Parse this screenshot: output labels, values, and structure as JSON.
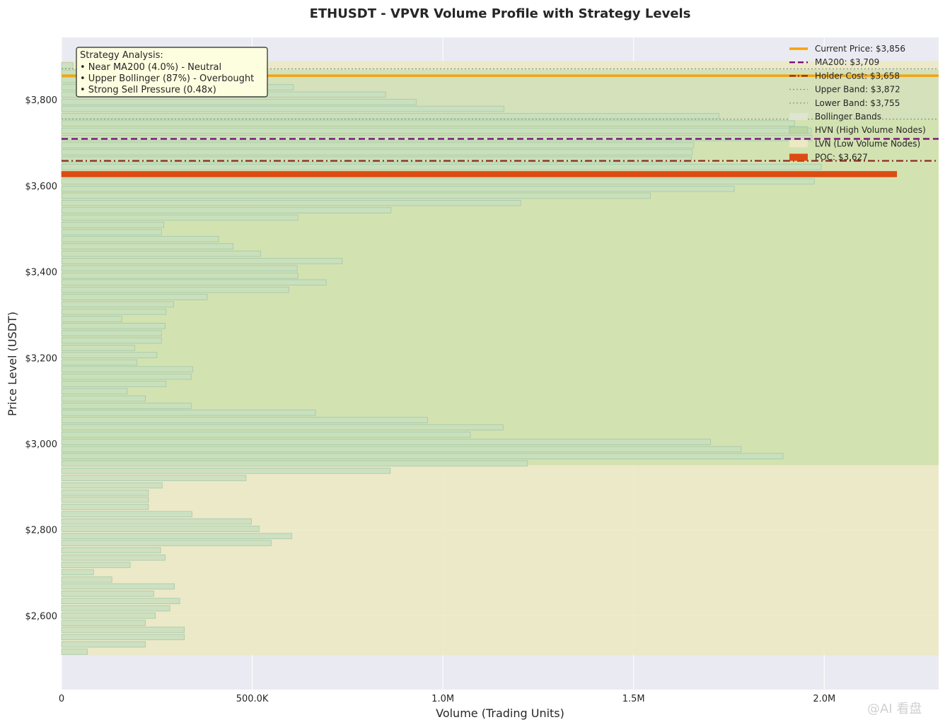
{
  "chart_data": {
    "type": "bar",
    "orientation": "horizontal",
    "title": "ETHUSDT - VPVR Volume Profile with Strategy Levels",
    "xlabel": "Volume (Trading Units)",
    "ylabel": "Price Level (USDT)",
    "xlim": [
      0,
      2300000
    ],
    "ylim": [
      2428,
      3945
    ],
    "x_ticks": [
      {
        "value": 0,
        "label": "0"
      },
      {
        "value": 500000,
        "label": "500.0K"
      },
      {
        "value": 1000000,
        "label": "1.0M"
      },
      {
        "value": 1500000,
        "label": "1.5M"
      },
      {
        "value": 2000000,
        "label": "2.0M"
      }
    ],
    "y_ticks": [
      {
        "value": 2600,
        "label": "$2,600"
      },
      {
        "value": 2800,
        "label": "$2,800"
      },
      {
        "value": 3000,
        "label": "$3,000"
      },
      {
        "value": 3200,
        "label": "$3,200"
      },
      {
        "value": 3400,
        "label": "$3,400"
      },
      {
        "value": 3600,
        "label": "$3,600"
      },
      {
        "value": 3800,
        "label": "$3,800"
      }
    ],
    "grid": true,
    "legend_position": "top-right",
    "bin_size": 16.8,
    "bins": [
      {
        "price": 2516,
        "volume": 68000
      },
      {
        "price": 2533,
        "volume": 220000
      },
      {
        "price": 2550,
        "volume": 322000
      },
      {
        "price": 2567,
        "volume": 322000
      },
      {
        "price": 2583,
        "volume": 220000
      },
      {
        "price": 2600,
        "volume": 246000
      },
      {
        "price": 2617,
        "volume": 284000
      },
      {
        "price": 2634,
        "volume": 310000
      },
      {
        "price": 2651,
        "volume": 242000
      },
      {
        "price": 2668,
        "volume": 296000
      },
      {
        "price": 2684,
        "volume": 132000
      },
      {
        "price": 2701,
        "volume": 84000
      },
      {
        "price": 2718,
        "volume": 180000
      },
      {
        "price": 2735,
        "volume": 272000
      },
      {
        "price": 2752,
        "volume": 260000
      },
      {
        "price": 2769,
        "volume": 550000
      },
      {
        "price": 2785,
        "volume": 604000
      },
      {
        "price": 2802,
        "volume": 518000
      },
      {
        "price": 2819,
        "volume": 498000
      },
      {
        "price": 2836,
        "volume": 342000
      },
      {
        "price": 2853,
        "volume": 228000
      },
      {
        "price": 2870,
        "volume": 228000
      },
      {
        "price": 2886,
        "volume": 228000
      },
      {
        "price": 2903,
        "volume": 264000
      },
      {
        "price": 2920,
        "volume": 484000
      },
      {
        "price": 2937,
        "volume": 862000
      },
      {
        "price": 2954,
        "volume": 1222000
      },
      {
        "price": 2971,
        "volume": 1892000
      },
      {
        "price": 2987,
        "volume": 1782000
      },
      {
        "price": 3004,
        "volume": 1702000
      },
      {
        "price": 3021,
        "volume": 1072000
      },
      {
        "price": 3038,
        "volume": 1158000
      },
      {
        "price": 3055,
        "volume": 960000
      },
      {
        "price": 3072,
        "volume": 666000
      },
      {
        "price": 3088,
        "volume": 340000
      },
      {
        "price": 3105,
        "volume": 220000
      },
      {
        "price": 3122,
        "volume": 172000
      },
      {
        "price": 3139,
        "volume": 274000
      },
      {
        "price": 3156,
        "volume": 340000
      },
      {
        "price": 3173,
        "volume": 344000
      },
      {
        "price": 3189,
        "volume": 198000
      },
      {
        "price": 3206,
        "volume": 250000
      },
      {
        "price": 3223,
        "volume": 192000
      },
      {
        "price": 3240,
        "volume": 262000
      },
      {
        "price": 3257,
        "volume": 262000
      },
      {
        "price": 3274,
        "volume": 272000
      },
      {
        "price": 3290,
        "volume": 158000
      },
      {
        "price": 3307,
        "volume": 274000
      },
      {
        "price": 3324,
        "volume": 294000
      },
      {
        "price": 3341,
        "volume": 382000
      },
      {
        "price": 3358,
        "volume": 596000
      },
      {
        "price": 3375,
        "volume": 694000
      },
      {
        "price": 3391,
        "volume": 620000
      },
      {
        "price": 3408,
        "volume": 618000
      },
      {
        "price": 3425,
        "volume": 736000
      },
      {
        "price": 3442,
        "volume": 522000
      },
      {
        "price": 3459,
        "volume": 450000
      },
      {
        "price": 3476,
        "volume": 412000
      },
      {
        "price": 3492,
        "volume": 262000
      },
      {
        "price": 3509,
        "volume": 268000
      },
      {
        "price": 3526,
        "volume": 620000
      },
      {
        "price": 3543,
        "volume": 864000
      },
      {
        "price": 3560,
        "volume": 1204000
      },
      {
        "price": 3577,
        "volume": 1544000
      },
      {
        "price": 3593,
        "volume": 1764000
      },
      {
        "price": 3610,
        "volume": 1974000
      },
      {
        "price": 3627,
        "volume": 2190000
      },
      {
        "price": 3644,
        "volume": 1992000
      },
      {
        "price": 3661,
        "volume": 1652000
      },
      {
        "price": 3678,
        "volume": 1654000
      },
      {
        "price": 3694,
        "volume": 1658000
      },
      {
        "price": 3711,
        "volume": 1968000
      },
      {
        "price": 3728,
        "volume": 1966000
      },
      {
        "price": 3745,
        "volume": 1922000
      },
      {
        "price": 3762,
        "volume": 1724000
      },
      {
        "price": 3779,
        "volume": 1160000
      },
      {
        "price": 3795,
        "volume": 930000
      },
      {
        "price": 3812,
        "volume": 850000
      },
      {
        "price": 3829,
        "volume": 608000
      },
      {
        "price": 3846,
        "volume": 392000
      },
      {
        "price": 3863,
        "volume": 84000
      },
      {
        "price": 3880,
        "volume": 30000
      }
    ],
    "hvn_range": [
      2950,
      3870
    ],
    "lvn_range": [
      2508,
      3890
    ],
    "bollinger_band": [
      3755,
      3872
    ],
    "levels": {
      "current_price": 3856,
      "ma200": 3709,
      "holder_cost": 3658,
      "upper_band": 3872,
      "lower_band": 3755,
      "poc": 3627
    },
    "legend": [
      {
        "label": "Current Price: $3,856",
        "style": "current",
        "color": "#f5a30a"
      },
      {
        "label": "MA200: $3,709",
        "style": "ma200",
        "color": "#7a0f7a"
      },
      {
        "label": "Holder Cost: $3,658",
        "style": "holder",
        "color": "#8b2a1f"
      },
      {
        "label": "Upper Band: $3,872",
        "style": "band-dot",
        "color": "#8a9a8a"
      },
      {
        "label": "Lower Band: $3,755",
        "style": "band-dot",
        "color": "#8a9a8a"
      },
      {
        "label": "Bollinger Bands",
        "style": "bollinger-patch",
        "color": "#dfe5d0"
      },
      {
        "label": "HVN (High Volume Nodes)",
        "style": "hvn-patch",
        "color": "#bcd6a4"
      },
      {
        "label": "LVN (Low Volume Nodes)",
        "style": "lvn-patch",
        "color": "#ece9c3"
      },
      {
        "label": "POC: $3,627",
        "style": "poc-patch",
        "color": "#dd4b12"
      }
    ],
    "annotation": {
      "title": "Strategy Analysis:",
      "lines": [
        "• Near MA200 (4.0%) - Neutral",
        "• Upper Bollinger (87%) - Overbought",
        "• Strong Sell Pressure (0.48x)"
      ]
    },
    "colors": {
      "background": "#eaeaf2",
      "lvn_fill": "#ece9c3",
      "hvn_fill": "#cfe0ad",
      "bar_fill": "#c8e0c0",
      "bar_stroke": "#9cc2a4",
      "poc": "#dd4b12",
      "current": "#f5a30a",
      "ma200": "#7a0f7a",
      "holder": "#8b2a1f",
      "band": "#8a9a8a"
    }
  },
  "watermark": "@AI 看盘"
}
